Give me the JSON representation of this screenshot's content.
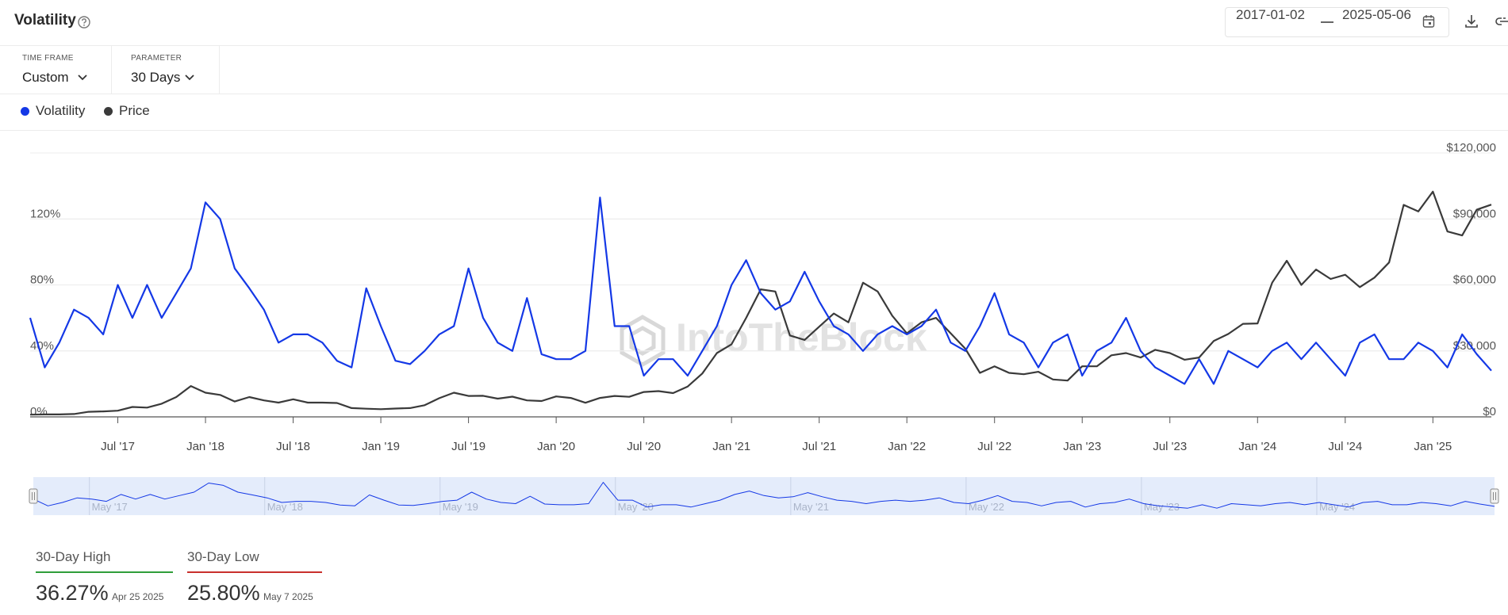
{
  "header": {
    "title": "Volatility",
    "date_from": "2017-01-02",
    "date_to": "2025-05-06"
  },
  "controls": {
    "time_frame_label": "TIME FRAME",
    "time_frame": "Custom",
    "parameter_label": "PARAMETER",
    "parameter": "30 Days"
  },
  "watermark": "IntoTheBlock",
  "chart_data": {
    "type": "line",
    "x": [
      "2017-01",
      "2017-02",
      "2017-03",
      "2017-04",
      "2017-05",
      "2017-06",
      "2017-07",
      "2017-08",
      "2017-09",
      "2017-10",
      "2017-11",
      "2017-12",
      "2018-01",
      "2018-02",
      "2018-03",
      "2018-04",
      "2018-05",
      "2018-06",
      "2018-07",
      "2018-08",
      "2018-09",
      "2018-10",
      "2018-11",
      "2018-12",
      "2019-01",
      "2019-02",
      "2019-03",
      "2019-04",
      "2019-05",
      "2019-06",
      "2019-07",
      "2019-08",
      "2019-09",
      "2019-10",
      "2019-11",
      "2019-12",
      "2020-01",
      "2020-02",
      "2020-03",
      "2020-04",
      "2020-05",
      "2020-06",
      "2020-07",
      "2020-08",
      "2020-09",
      "2020-10",
      "2020-11",
      "2020-12",
      "2021-01",
      "2021-02",
      "2021-03",
      "2021-04",
      "2021-05",
      "2021-06",
      "2021-07",
      "2021-08",
      "2021-09",
      "2021-10",
      "2021-11",
      "2021-12",
      "2022-01",
      "2022-02",
      "2022-03",
      "2022-04",
      "2022-05",
      "2022-06",
      "2022-07",
      "2022-08",
      "2022-09",
      "2022-10",
      "2022-11",
      "2022-12",
      "2023-01",
      "2023-02",
      "2023-03",
      "2023-04",
      "2023-05",
      "2023-06",
      "2023-07",
      "2023-08",
      "2023-09",
      "2023-10",
      "2023-11",
      "2023-12",
      "2024-01",
      "2024-02",
      "2024-03",
      "2024-04",
      "2024-05",
      "2024-06",
      "2024-07",
      "2024-08",
      "2024-09",
      "2024-10",
      "2024-11",
      "2024-12",
      "2025-01",
      "2025-02",
      "2025-03",
      "2025-04",
      "2025-05"
    ],
    "series": [
      {
        "name": "Volatility",
        "color": "#1438e6",
        "values": [
          60,
          30,
          45,
          65,
          60,
          50,
          80,
          60,
          80,
          60,
          75,
          90,
          130,
          120,
          90,
          78,
          65,
          45,
          50,
          50,
          45,
          34,
          30,
          78,
          55,
          34,
          32,
          40,
          50,
          55,
          90,
          60,
          45,
          40,
          72,
          38,
          35,
          35,
          40,
          133,
          55,
          55,
          25,
          35,
          35,
          25,
          40,
          55,
          80,
          95,
          75,
          65,
          70,
          88,
          70,
          55,
          50,
          40,
          50,
          55,
          50,
          55,
          65,
          45,
          40,
          55,
          75,
          50,
          45,
          30,
          45,
          50,
          25,
          40,
          45,
          60,
          40,
          30,
          25,
          20,
          35,
          20,
          40,
          35,
          30,
          40,
          45,
          35,
          45,
          35,
          25,
          45,
          50,
          35,
          35,
          45,
          40,
          30,
          50,
          38,
          28
        ]
      },
      {
        "name": "Price",
        "color": "#3a3a3a",
        "axis": "y2",
        "values": [
          1000,
          1100,
          1100,
          1300,
          2300,
          2500,
          2800,
          4500,
          4200,
          6000,
          9000,
          14000,
          11000,
          10000,
          7000,
          9000,
          7500,
          6500,
          8000,
          6500,
          6500,
          6300,
          4000,
          3700,
          3500,
          3800,
          4000,
          5300,
          8500,
          11000,
          9500,
          9600,
          8300,
          9200,
          7500,
          7200,
          9300,
          8600,
          6400,
          8600,
          9500,
          9100,
          11300,
          11700,
          10800,
          13800,
          19700,
          29000,
          33000,
          45000,
          58000,
          57000,
          37000,
          35000,
          41000,
          47000,
          43000,
          61000,
          57000,
          46000,
          38000,
          43000,
          45000,
          38000,
          31000,
          20000,
          23000,
          20000,
          19400,
          20500,
          17000,
          16500,
          23000,
          23000,
          28000,
          29000,
          27000,
          30500,
          29000,
          26000,
          27000,
          34500,
          37700,
          42300,
          42500,
          61000,
          71000,
          60000,
          67000,
          62700,
          64600,
          59000,
          63300,
          70200,
          96400,
          93400,
          102400,
          84300,
          82500,
          94200,
          96500
        ]
      }
    ],
    "ylim": [
      0,
      160
    ],
    "yticks": [
      {
        "value": 0,
        "label": "0%"
      },
      {
        "value": 40,
        "label": "40%"
      },
      {
        "value": 80,
        "label": "80%"
      },
      {
        "value": 120,
        "label": "120%"
      }
    ],
    "y2lim": [
      0,
      120000
    ],
    "y2ticks": [
      {
        "value": 0,
        "label": "$0"
      },
      {
        "value": 30000,
        "label": "$30,000"
      },
      {
        "value": 60000,
        "label": "$60,000"
      },
      {
        "value": 90000,
        "label": "$90,000"
      },
      {
        "value": 120000,
        "label": "$120,000"
      }
    ],
    "xticks": [
      {
        "value": "2017-07",
        "label": "Jul '17"
      },
      {
        "value": "2018-01",
        "label": "Jan '18"
      },
      {
        "value": "2018-07",
        "label": "Jul '18"
      },
      {
        "value": "2019-01",
        "label": "Jan '19"
      },
      {
        "value": "2019-07",
        "label": "Jul '19"
      },
      {
        "value": "2020-01",
        "label": "Jan '20"
      },
      {
        "value": "2020-07",
        "label": "Jul '20"
      },
      {
        "value": "2021-01",
        "label": "Jan '21"
      },
      {
        "value": "2021-07",
        "label": "Jul '21"
      },
      {
        "value": "2022-01",
        "label": "Jan '22"
      },
      {
        "value": "2022-07",
        "label": "Jul '22"
      },
      {
        "value": "2023-01",
        "label": "Jan '23"
      },
      {
        "value": "2023-07",
        "label": "Jul '23"
      },
      {
        "value": "2024-01",
        "label": "Jan '24"
      },
      {
        "value": "2024-07",
        "label": "Jul '24"
      },
      {
        "value": "2025-01",
        "label": "Jan '25"
      }
    ],
    "grid": true,
    "legend": "top-left"
  },
  "navigator": {
    "labels": [
      {
        "value": "2017-05",
        "label": "May '17"
      },
      {
        "value": "2018-05",
        "label": "May '18"
      },
      {
        "value": "2019-05",
        "label": "May '19"
      },
      {
        "value": "2020-05",
        "label": "May '20"
      },
      {
        "value": "2021-05",
        "label": "May '21"
      },
      {
        "value": "2022-05",
        "label": "May '22"
      },
      {
        "value": "2023-05",
        "label": "May '23"
      },
      {
        "value": "2024-05",
        "label": "May '24"
      }
    ]
  },
  "stats": {
    "high": {
      "label": "30-Day High",
      "value": "36.27%",
      "date": "Apr 25 2025"
    },
    "low": {
      "label": "30-Day Low",
      "value": "25.80%",
      "date": "May 7 2025"
    }
  }
}
